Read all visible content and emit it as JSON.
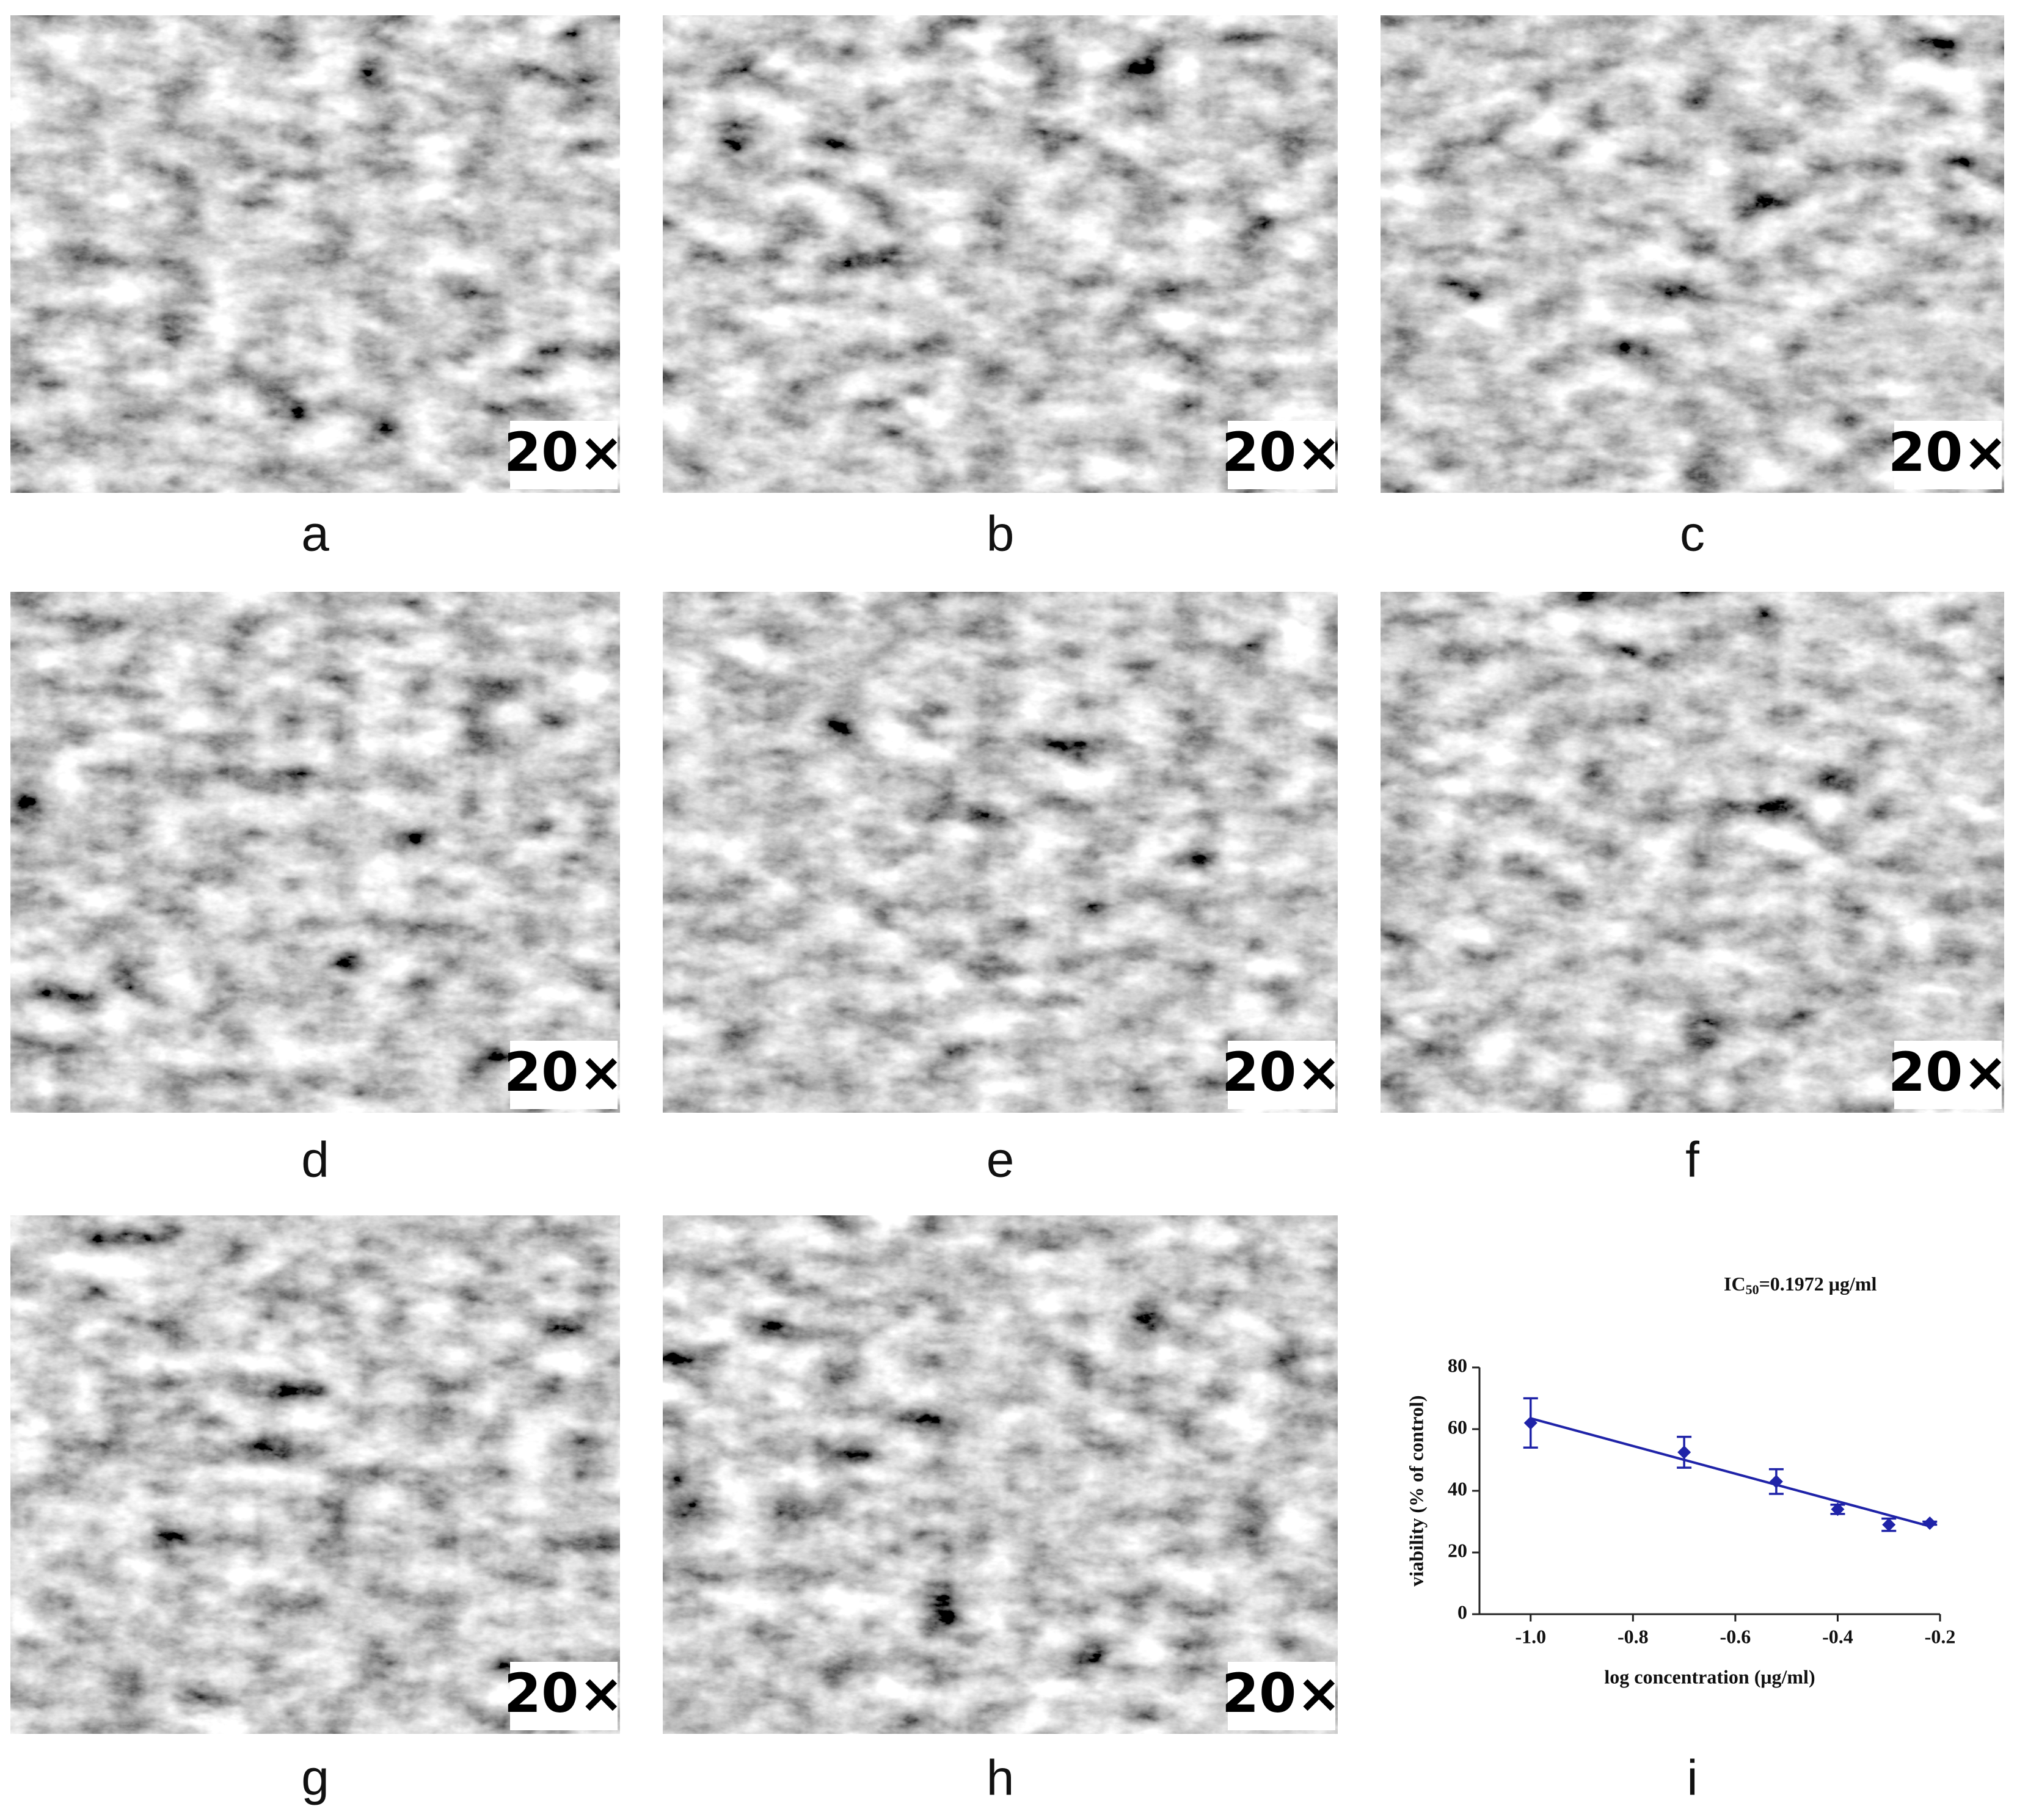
{
  "panels": [
    {
      "label": "a",
      "badge": "20×"
    },
    {
      "label": "b",
      "badge": "20×"
    },
    {
      "label": "c",
      "badge": "20×"
    },
    {
      "label": "d",
      "badge": "20×"
    },
    {
      "label": "e",
      "badge": "20×"
    },
    {
      "label": "f",
      "badge": "20×"
    },
    {
      "label": "g",
      "badge": "20×"
    },
    {
      "label": "h",
      "badge": "20×"
    }
  ],
  "chart_label": "i",
  "chart_data": {
    "type": "line",
    "annotation": [
      "IC",
      "50",
      "=0.1972 μg/ml"
    ],
    "x_label": "log concentration (μg/ml)",
    "y_label": "viability (% of control)",
    "x": [
      -1.0,
      -0.7,
      -0.52,
      -0.4,
      -0.3,
      -0.22
    ],
    "values": [
      62,
      52.5,
      43,
      34,
      29,
      29.5
    ],
    "errors": [
      8,
      5,
      4,
      1.5,
      2,
      0.5
    ],
    "color": "#1f23a8",
    "fit": {
      "x": [
        -1.0,
        -0.22
      ],
      "y": [
        63.5,
        28.5
      ]
    },
    "xlim": [
      -1.1,
      -0.2
    ],
    "xticks": [
      {
        "value": -1,
        "label": "-1.0"
      },
      -0.8,
      -0.6,
      -0.4,
      -0.2
    ],
    "ylim": [
      0,
      80
    ],
    "yticks": [
      0,
      20,
      40,
      60,
      80
    ]
  }
}
